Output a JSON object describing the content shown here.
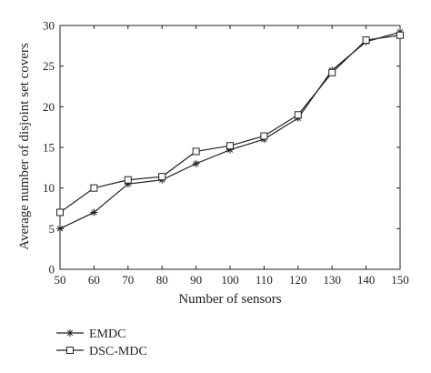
{
  "chart_data": {
    "type": "line",
    "xlabel": "Number of sensors",
    "ylabel": "Average number of disjoint set covers",
    "x": [
      50,
      60,
      70,
      80,
      90,
      100,
      110,
      120,
      130,
      140,
      150
    ],
    "xlim": [
      50,
      150
    ],
    "ylim": [
      0,
      30
    ],
    "xticks": [
      "50",
      "60",
      "70",
      "80",
      "90",
      "100",
      "110",
      "120",
      "130",
      "140",
      "150"
    ],
    "yticks": [
      "0",
      "5",
      "10",
      "15",
      "20",
      "25",
      "30"
    ],
    "grid": false,
    "legend_position": "bottom-left, below plot",
    "series": [
      {
        "name": "EMDC",
        "marker": "asterisk",
        "color": "#222222",
        "values": [
          5.0,
          7.0,
          10.5,
          11.0,
          13.0,
          14.7,
          16.0,
          18.6,
          24.5,
          28.0,
          29.2
        ]
      },
      {
        "name": "DSC-MDC",
        "marker": "square",
        "color": "#222222",
        "values": [
          7.0,
          10.0,
          11.0,
          11.4,
          14.5,
          15.2,
          16.4,
          19.0,
          24.2,
          28.2,
          28.8
        ]
      }
    ]
  }
}
